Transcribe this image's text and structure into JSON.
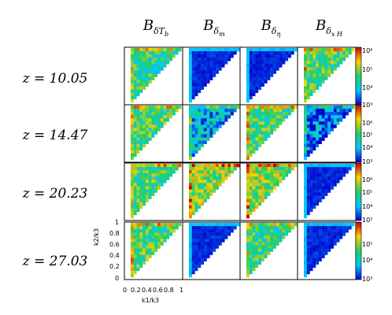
{
  "columns": [
    {
      "label": "B",
      "sub": "δT",
      "subsub": "b"
    },
    {
      "label": "B",
      "sub": "δ",
      "subsub": "m"
    },
    {
      "label": "B",
      "sub": "δ",
      "subsub": "η"
    },
    {
      "label": "B",
      "sub": "δ",
      "subsub": "x H"
    }
  ],
  "rows": [
    {
      "label": "z = 10.05"
    },
    {
      "label": "z = 14.47"
    },
    {
      "label": "z = 20.23"
    },
    {
      "label": "z = 27.03"
    }
  ],
  "axes": {
    "xlabel": "k1/k3",
    "ylabel": "k2/k3",
    "xticks": [
      "0",
      "0.2",
      "0.4",
      "0.6",
      "0.8",
      "1"
    ],
    "yticks": [
      "1",
      "0.8",
      "0.6",
      "0.4",
      "0.2",
      "0"
    ]
  },
  "colorbars": [
    {
      "ticks": [
        "10⁸",
        "10⁵",
        "10⁴",
        "10³"
      ]
    },
    {
      "ticks": [
        "10³",
        "10⁶",
        "10⁵",
        "10⁴",
        "10³"
      ]
    },
    {
      "ticks": [
        "10³",
        "10⁶",
        "10⁵",
        "10⁴",
        "10³"
      ]
    },
    {
      "ticks": [
        "10³",
        "10⁵",
        "10⁴",
        "10³"
      ]
    }
  ],
  "panel_levels": [
    [
      0.45,
      0.05,
      0.05,
      0.5
    ],
    [
      0.5,
      0.25,
      0.5,
      0.15
    ],
    [
      0.5,
      0.6,
      0.6,
      0.05
    ],
    [
      0.5,
      0.05,
      0.45,
      0.05
    ]
  ]
}
